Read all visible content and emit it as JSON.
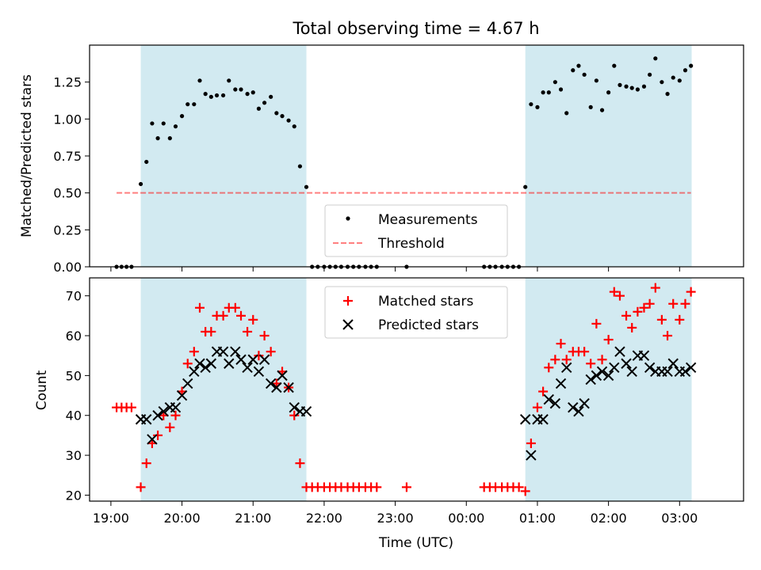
{
  "title": "Total observing time = 4.67 h",
  "x_axis_label": "Time (UTC)",
  "x_tick_labels": [
    "19:00",
    "20:00",
    "21:00",
    "22:00",
    "23:00",
    "00:00",
    "01:00",
    "02:00",
    "03:00"
  ],
  "colors": {
    "observing_band": "#add8e6",
    "measurement": "#000000",
    "threshold": "#ff0000",
    "matched": "#ff0000",
    "predicted": "#000000"
  },
  "chart_data": [
    {
      "type": "scatter",
      "panel": "top",
      "ylabel": "Matched/Predicted stars",
      "xlim": [
        -0.3,
        8.9
      ],
      "ylim": [
        0,
        1.5
      ],
      "x_ticks": [
        0,
        1,
        2,
        3,
        4,
        5,
        6,
        7,
        8
      ],
      "y_ticks": [
        0,
        0.25,
        0.5,
        0.75,
        1.0,
        1.25
      ],
      "y_tick_labels": [
        "0.00",
        "0.25",
        "0.50",
        "0.75",
        "1.00",
        "1.25"
      ],
      "observing_windows": [
        [
          0.42,
          2.75
        ],
        [
          5.83,
          8.17
        ]
      ],
      "legend": {
        "position": "lower center",
        "entries": [
          "Measurements",
          "Threshold"
        ]
      },
      "series": [
        {
          "name": "Measurements",
          "marker": "dot",
          "x": [
            0.08,
            0.15,
            0.22,
            0.29,
            0.42,
            0.5,
            0.58,
            0.66,
            0.74,
            0.83,
            0.91,
            1.0,
            1.08,
            1.17,
            1.25,
            1.33,
            1.41,
            1.49,
            1.58,
            1.66,
            1.75,
            1.83,
            1.92,
            2.0,
            2.08,
            2.16,
            2.25,
            2.33,
            2.41,
            2.5,
            2.58,
            2.66,
            2.75,
            2.83,
            2.91,
            3.0,
            3.08,
            3.16,
            3.24,
            3.33,
            3.41,
            3.49,
            3.58,
            3.66,
            3.74,
            4.16,
            5.25,
            5.33,
            5.41,
            5.5,
            5.58,
            5.66,
            5.74,
            5.83,
            5.91,
            6.0,
            6.08,
            6.16,
            6.25,
            6.33,
            6.41,
            6.5,
            6.58,
            6.66,
            6.75,
            6.83,
            6.91,
            7.0,
            7.08,
            7.16,
            7.25,
            7.33,
            7.41,
            7.5,
            7.58,
            7.66,
            7.75,
            7.83,
            7.91,
            8.0,
            8.08,
            8.16
          ],
          "y": [
            0,
            0,
            0,
            0,
            0.56,
            0.71,
            0.97,
            0.87,
            0.97,
            0.87,
            0.95,
            1.02,
            1.1,
            1.1,
            1.26,
            1.17,
            1.15,
            1.16,
            1.16,
            1.26,
            1.2,
            1.2,
            1.17,
            1.18,
            1.07,
            1.11,
            1.15,
            1.04,
            1.02,
            0.99,
            0.95,
            0.68,
            0.54,
            0,
            0,
            0,
            0,
            0,
            0,
            0,
            0,
            0,
            0,
            0,
            0,
            0,
            0,
            0,
            0,
            0,
            0,
            0,
            0,
            0.54,
            1.1,
            1.08,
            1.18,
            1.18,
            1.25,
            1.2,
            1.04,
            1.33,
            1.36,
            1.3,
            1.08,
            1.26,
            1.06,
            1.18,
            1.36,
            1.23,
            1.22,
            1.21,
            1.2,
            1.22,
            1.3,
            1.41,
            1.25,
            1.17,
            1.28,
            1.26,
            1.33,
            1.36
          ]
        },
        {
          "name": "Threshold",
          "marker": "dashed-line",
          "x": [
            0.08,
            8.16
          ],
          "y": [
            0.5,
            0.5
          ]
        }
      ]
    },
    {
      "type": "scatter",
      "panel": "bottom",
      "ylabel": "Count",
      "xlabel": "Time (UTC)",
      "xlim": [
        -0.3,
        8.9
      ],
      "ylim": [
        18.5,
        74.5
      ],
      "x_ticks": [
        0,
        1,
        2,
        3,
        4,
        5,
        6,
        7,
        8
      ],
      "y_ticks": [
        20,
        30,
        40,
        50,
        60,
        70
      ],
      "y_tick_labels": [
        "20",
        "30",
        "40",
        "50",
        "60",
        "70"
      ],
      "observing_windows": [
        [
          0.42,
          2.75
        ],
        [
          5.83,
          8.17
        ]
      ],
      "legend": {
        "position": "upper center",
        "entries": [
          "Matched stars",
          "Predicted stars"
        ]
      },
      "series": [
        {
          "name": "Matched stars",
          "marker": "plus",
          "x": [
            0.08,
            0.15,
            0.22,
            0.29,
            0.42,
            0.5,
            0.58,
            0.66,
            0.74,
            0.83,
            0.91,
            1.0,
            1.08,
            1.17,
            1.25,
            1.33,
            1.41,
            1.49,
            1.58,
            1.66,
            1.75,
            1.83,
            1.92,
            2.0,
            2.08,
            2.16,
            2.25,
            2.33,
            2.41,
            2.5,
            2.58,
            2.66,
            2.75,
            2.83,
            2.91,
            3.0,
            3.08,
            3.16,
            3.24,
            3.33,
            3.41,
            3.49,
            3.58,
            3.66,
            3.74,
            4.16,
            5.25,
            5.33,
            5.41,
            5.5,
            5.58,
            5.66,
            5.74,
            5.83,
            5.91,
            6.0,
            6.08,
            6.16,
            6.25,
            6.33,
            6.41,
            6.5,
            6.58,
            6.66,
            6.75,
            6.83,
            6.91,
            7.0,
            7.08,
            7.16,
            7.25,
            7.33,
            7.41,
            7.5,
            7.58,
            7.66,
            7.75,
            7.83,
            7.91,
            8.0,
            8.08,
            8.16
          ],
          "y": [
            42,
            42,
            42,
            42,
            22,
            28,
            33,
            35,
            40,
            37,
            40,
            46,
            53,
            56,
            67,
            61,
            61,
            65,
            65,
            67,
            67,
            65,
            61,
            64,
            55,
            60,
            56,
            48,
            51,
            47,
            40,
            28,
            22,
            22,
            22,
            22,
            22,
            22,
            22,
            22,
            22,
            22,
            22,
            22,
            22,
            22,
            22,
            22,
            22,
            22,
            22,
            22,
            22,
            21,
            33,
            42,
            46,
            52,
            54,
            58,
            54,
            56,
            56,
            56,
            53,
            63,
            54,
            59,
            71,
            70,
            65,
            62,
            66,
            67,
            68,
            72,
            64,
            60,
            68,
            64,
            68,
            71
          ]
        },
        {
          "name": "Predicted stars",
          "marker": "x",
          "x": [
            0.42,
            0.5,
            0.58,
            0.66,
            0.74,
            0.83,
            0.91,
            1.0,
            1.08,
            1.17,
            1.25,
            1.33,
            1.41,
            1.49,
            1.58,
            1.66,
            1.75,
            1.83,
            1.92,
            2.0,
            2.08,
            2.16,
            2.25,
            2.33,
            2.41,
            2.5,
            2.58,
            2.66,
            2.75,
            5.83,
            5.91,
            6.0,
            6.08,
            6.16,
            6.25,
            6.33,
            6.41,
            6.5,
            6.58,
            6.66,
            6.75,
            6.83,
            6.91,
            7.0,
            7.08,
            7.16,
            7.25,
            7.33,
            7.41,
            7.5,
            7.58,
            7.66,
            7.75,
            7.83,
            7.91,
            8.0,
            8.08,
            8.16
          ],
          "y": [
            39,
            39,
            34,
            40,
            41,
            42,
            42,
            45,
            48,
            51,
            53,
            52,
            53,
            56,
            56,
            53,
            56,
            54,
            52,
            54,
            51,
            54,
            48,
            47,
            50,
            47,
            42,
            41,
            41,
            39,
            30,
            39,
            39,
            44,
            43,
            48,
            52,
            42,
            41,
            43,
            49,
            50,
            51,
            50,
            52,
            56,
            53,
            51,
            55,
            55,
            52,
            51,
            51,
            51,
            53,
            51,
            51,
            52
          ]
        }
      ]
    }
  ]
}
